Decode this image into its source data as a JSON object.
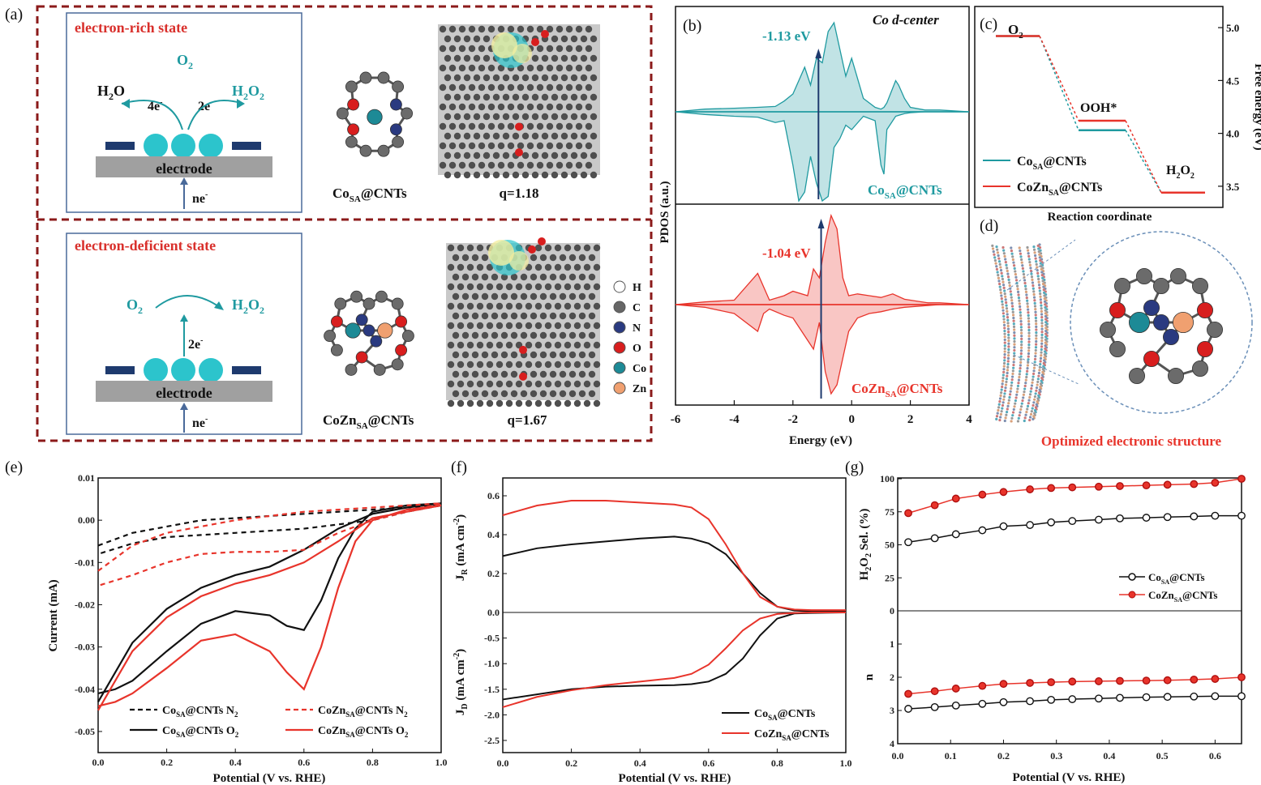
{
  "panels": {
    "a": {
      "label": "(a)",
      "top_state": "electron-rich state",
      "bottom_state": "electron-deficient state",
      "o2": "O",
      "o2_sub": "2",
      "h2o": "H",
      "h2o_sub": "2",
      "h2o_end": "O",
      "h2o2": "H",
      "h2o2_sub1": "2",
      "h2o2_mid": "O",
      "h2o2_sub2": "2",
      "four_e": "4e",
      "four_e_sup": "-",
      "two_e": "2e",
      "two_e_sup": "-",
      "electrode": "electrode",
      "ne": "ne",
      "ne_sup": "-",
      "co_name": "Co",
      "co_sub": "SA",
      "co_suffix": "@CNTs",
      "q_top": "q=1.18",
      "coz_name": "CoZn",
      "coz_sub": "SA",
      "coz_suffix": "@CNTs",
      "q_bottom": "q=1.67",
      "legend": [
        "H",
        "C",
        "N",
        "O",
        "Co",
        "Zn"
      ],
      "legend_colors": [
        "#ffffff",
        "#666666",
        "#2a3a80",
        "#d81e1e",
        "#1d8a96",
        "#f0a070"
      ]
    },
    "b": {
      "label": "(b)",
      "title": "Co d-center",
      "title_prefix": "Co ",
      "title_italic": "d",
      "title_suffix": "-center",
      "top_value": "-1.13 eV",
      "bottom_value": "-1.04 eV",
      "top_series": "Co",
      "top_series_sub": "SA",
      "top_series_suffix": "@CNTs",
      "bottom_series": "CoZn",
      "bottom_series_sub": "SA",
      "bottom_series_suffix": "@CNTs",
      "xlabel": "Energy (eV)",
      "ylabel": "PDOS (a.u.)",
      "xticks": [
        "-6",
        "-4",
        "-2",
        "0",
        "2",
        "4"
      ]
    },
    "c": {
      "label": "(c)",
      "o2": "O",
      "o2_sub": "2",
      "ooh": "OOH*",
      "h2o2": "H",
      "h2o2_sub1": "2",
      "h2o2_mid": "O",
      "h2o2_sub2": "2",
      "xlabel": "Reaction coordinate",
      "ylabel": "Free energy (eV)",
      "yticks": [
        "5.0",
        "4.5",
        "4.0",
        "3.5"
      ],
      "legend1": "Co",
      "legend1_sub": "SA",
      "legend1_suffix": "@CNTs",
      "legend2": "CoZn",
      "legend2_sub": "SA",
      "legend2_suffix": "@CNTs"
    },
    "d": {
      "label": "(d)",
      "caption": "Optimized electronic structure"
    },
    "e": {
      "label": "(e)",
      "xlabel": "Potential (V vs. RHE)",
      "ylabel": "Current (mA)",
      "xticks": [
        "0.0",
        "0.2",
        "0.4",
        "0.6",
        "0.8",
        "1.0"
      ],
      "yticks": [
        "0.01",
        "0.00",
        "-0.01",
        "-0.02",
        "-0.03",
        "-0.04",
        "-0.05"
      ],
      "legend": [
        {
          "base": "Co",
          "sub": "SA",
          "rest": "@CNTs N",
          "sub2": "2",
          "style": "dash",
          "color": "#111111"
        },
        {
          "base": "Co",
          "sub": "SA",
          "rest": "@CNTs O",
          "sub2": "2",
          "style": "solid",
          "color": "#111111"
        },
        {
          "base": "CoZn",
          "sub": "SA",
          "rest": "@CNTs N",
          "sub2": "2",
          "style": "dash",
          "color": "#e8342b"
        },
        {
          "base": "CoZn",
          "sub": "SA",
          "rest": "@CNTs O",
          "sub2": "2",
          "style": "solid",
          "color": "#e8342b"
        }
      ]
    },
    "f": {
      "label": "(f)",
      "xlabel": "Potential (V vs. RHE)",
      "ylabel_top": "J",
      "ylabel_top_sub": "R",
      "ylabel_top_rest": " (mA cm",
      "ylabel_top_sup": "-2",
      "ylabel_top_end": ")",
      "ylabel_bottom": "J",
      "ylabel_bottom_sub": "D",
      "ylabel_bottom_rest": " (mA cm",
      "ylabel_bottom_sup": "-2",
      "ylabel_bottom_end": ")",
      "xticks": [
        "0.0",
        "0.2",
        "0.4",
        "0.6",
        "0.8",
        "1.0"
      ],
      "yticks": [
        "0.6",
        "0.4",
        "0.2",
        "0.0",
        "-0.5",
        "-1.0",
        "-1.5",
        "-2.0",
        "-2.5"
      ],
      "legend1": "Co",
      "legend1_sub": "SA",
      "legend1_suffix": "@CNTs",
      "legend2": "CoZn",
      "legend2_sub": "SA",
      "legend2_suffix": "@CNTs"
    },
    "g": {
      "label": "(g)",
      "xlabel": "Potential (V vs. RHE)",
      "ylabel_top": "H",
      "ylabel_top_sub1": "2",
      "ylabel_top_mid": "O",
      "ylabel_top_sub2": "2",
      "ylabel_top_rest": " Sel. (%)",
      "ylabel_bottom": "n",
      "xticks": [
        "0.0",
        "0.1",
        "0.2",
        "0.3",
        "0.4",
        "0.5",
        "0.6"
      ],
      "yticks_top": [
        "100",
        "75",
        "50",
        "25",
        "0"
      ],
      "yticks_bottom": [
        "1",
        "2",
        "3",
        "4"
      ],
      "legend1": "Co",
      "legend1_sub": "SA",
      "legend1_suffix": "@CNTs",
      "legend2": "CoZn",
      "legend2_sub": "SA",
      "legend2_suffix": "@CNTs"
    }
  },
  "colors": {
    "teal": "#1f9aa0",
    "red": "#e8342b",
    "dashed_border": "#8b1a1a",
    "box_border": "#4a6a9a"
  },
  "chart_data": [
    {
      "type": "line",
      "panel": "b-top",
      "x": [
        -6,
        -5,
        -4,
        -3.2,
        -2.6,
        -2.3,
        -2.0,
        -1.8,
        -1.6,
        -1.4,
        -1.2,
        -1.0,
        -0.8,
        -0.6,
        -0.4,
        -0.2,
        0,
        0.4,
        0.8,
        1.0,
        1.1,
        1.2,
        1.5,
        1.6,
        1.8,
        2.0,
        2.5,
        3,
        4
      ],
      "series": [
        {
          "name": "Co_SA@CNTs (spin up)",
          "values": [
            0.0,
            0.03,
            0.04,
            0.05,
            0.06,
            0.12,
            0.2,
            0.35,
            0.5,
            0.3,
            0.6,
            0.55,
            0.9,
            1.0,
            0.7,
            0.4,
            0.6,
            0.15,
            0.05,
            0.03,
            0.05,
            0.1,
            0.35,
            0.3,
            0.15,
            0.05,
            0.02,
            0.02,
            0.0
          ]
        },
        {
          "name": "Co_SA@CNTs (spin down)",
          "values": [
            0.0,
            -0.03,
            -0.05,
            -0.06,
            -0.12,
            -0.1,
            -0.6,
            -1.0,
            -0.9,
            -0.5,
            -0.8,
            -1.0,
            -0.95,
            -0.4,
            -0.3,
            -0.15,
            -0.2,
            -0.05,
            -0.1,
            -0.6,
            -0.7,
            -0.2,
            -0.05,
            -0.04,
            -0.02,
            -0.01,
            0.0,
            0.0,
            0.0
          ]
        }
      ],
      "annotation": "-1.13 eV",
      "d_center": -1.13,
      "xlim": [
        -6,
        4
      ]
    },
    {
      "type": "line",
      "panel": "b-bottom",
      "x": [
        -6,
        -5,
        -4,
        -3.2,
        -3.0,
        -2.8,
        -2.3,
        -2.0,
        -1.5,
        -1.3,
        -1.1,
        -0.9,
        -0.7,
        -0.5,
        -0.3,
        -0.1,
        0.2,
        0.6,
        1.0,
        1.4,
        1.8,
        2.2,
        2.6,
        3,
        4
      ],
      "series": [
        {
          "name": "CoZn_SA@CNTs (spin up)",
          "values": [
            0.0,
            0.03,
            0.05,
            0.35,
            0.2,
            0.05,
            0.1,
            0.15,
            0.1,
            0.4,
            0.3,
            0.7,
            1.0,
            0.85,
            0.3,
            0.1,
            0.12,
            0.1,
            0.08,
            0.12,
            0.06,
            0.04,
            0.02,
            0.02,
            0.0
          ]
        },
        {
          "name": "CoZn_SA@CNTs (spin down)",
          "values": [
            0.0,
            -0.03,
            -0.1,
            -0.3,
            -0.1,
            -0.05,
            -0.12,
            -0.15,
            -0.4,
            -0.5,
            -0.2,
            -0.75,
            -1.0,
            -0.9,
            -0.6,
            -0.3,
            -0.15,
            -0.1,
            -0.08,
            -0.05,
            -0.03,
            -0.02,
            -0.01,
            0.0,
            0.0
          ]
        }
      ],
      "annotation": "-1.04 eV",
      "d_center": -1.04,
      "xlim": [
        -6,
        4
      ]
    },
    {
      "type": "line",
      "panel": "c",
      "categories": [
        "O2",
        "OOH*",
        "H2O2"
      ],
      "series": [
        {
          "name": "Co_SA@CNTs",
          "values": [
            4.92,
            4.03,
            3.44
          ]
        },
        {
          "name": "CoZn_SA@CNTs",
          "values": [
            4.92,
            4.12,
            3.44
          ]
        }
      ],
      "ylim": [
        3.3,
        5.2
      ],
      "xlabel": "Reaction coordinate",
      "ylabel": "Free energy (eV)"
    },
    {
      "type": "line",
      "panel": "e",
      "xlabel": "Potential (V vs. RHE)",
      "ylabel": "Current (mA)",
      "xlim": [
        0.0,
        1.0
      ],
      "ylim": [
        -0.055,
        0.01
      ],
      "series": [
        {
          "name": "Co_SA@CNTs N2",
          "x": [
            0.0,
            0.1,
            0.2,
            0.3,
            0.4,
            0.5,
            0.6,
            0.7,
            0.8,
            0.9,
            1.0,
            0.9,
            0.8,
            0.7,
            0.6,
            0.5,
            0.4,
            0.3,
            0.2,
            0.1,
            0.0
          ],
          "values": [
            -0.006,
            -0.003,
            -0.0015,
            0.0,
            0.0005,
            0.001,
            0.0015,
            0.002,
            0.0025,
            0.003,
            0.0035,
            0.002,
            0.0,
            -0.001,
            -0.002,
            -0.0025,
            -0.003,
            -0.0035,
            -0.004,
            -0.0055,
            -0.008
          ]
        },
        {
          "name": "Co_SA@CNTs O2",
          "x": [
            0.0,
            0.05,
            0.1,
            0.2,
            0.3,
            0.4,
            0.5,
            0.55,
            0.6,
            0.65,
            0.7,
            0.75,
            0.8,
            0.9,
            1.0,
            0.9,
            0.8,
            0.7,
            0.6,
            0.5,
            0.4,
            0.3,
            0.2,
            0.1,
            0.0
          ],
          "values": [
            -0.041,
            -0.04,
            -0.038,
            -0.031,
            -0.0245,
            -0.0215,
            -0.0225,
            -0.025,
            -0.026,
            -0.019,
            -0.009,
            -0.002,
            0.002,
            0.0035,
            0.004,
            0.003,
            0.0015,
            -0.002,
            -0.007,
            -0.011,
            -0.013,
            -0.016,
            -0.021,
            -0.029,
            -0.043
          ]
        },
        {
          "name": "CoZn_SA@CNTs N2",
          "x": [
            0.0,
            0.1,
            0.2,
            0.3,
            0.4,
            0.5,
            0.6,
            0.7,
            0.8,
            0.9,
            1.0,
            0.9,
            0.8,
            0.7,
            0.6,
            0.5,
            0.4,
            0.3,
            0.2,
            0.1,
            0.0
          ],
          "values": [
            -0.012,
            -0.006,
            -0.003,
            -0.0015,
            0.0,
            0.001,
            0.002,
            0.0025,
            0.003,
            0.0035,
            0.004,
            0.002,
            0.0,
            -0.003,
            -0.007,
            -0.0075,
            -0.0075,
            -0.008,
            -0.01,
            -0.013,
            -0.0155
          ]
        },
        {
          "name": "CoZn_SA@CNTs O2",
          "x": [
            0.0,
            0.05,
            0.1,
            0.2,
            0.3,
            0.4,
            0.5,
            0.55,
            0.6,
            0.65,
            0.7,
            0.75,
            0.8,
            0.9,
            1.0,
            0.9,
            0.8,
            0.7,
            0.6,
            0.5,
            0.4,
            0.3,
            0.2,
            0.1,
            0.0
          ],
          "values": [
            -0.044,
            -0.043,
            -0.041,
            -0.035,
            -0.0285,
            -0.027,
            -0.031,
            -0.036,
            -0.04,
            -0.03,
            -0.016,
            -0.005,
            0.0,
            0.0025,
            0.0035,
            0.002,
            0.0005,
            -0.005,
            -0.01,
            -0.013,
            -0.015,
            -0.018,
            -0.023,
            -0.031,
            -0.045
          ]
        }
      ],
      "legend_position": "bottom"
    },
    {
      "type": "line",
      "panel": "f-top",
      "xlabel": "Potential (V vs. RHE)",
      "ylabel": "J_R (mA cm-2)",
      "xlim": [
        0.0,
        1.0
      ],
      "ylim": [
        0.0,
        0.65
      ],
      "x": [
        0.0,
        0.1,
        0.2,
        0.3,
        0.4,
        0.5,
        0.55,
        0.6,
        0.65,
        0.7,
        0.75,
        0.8,
        0.85,
        0.9,
        1.0
      ],
      "series": [
        {
          "name": "Co_SA@CNTs",
          "values": [
            0.29,
            0.33,
            0.35,
            0.365,
            0.38,
            0.39,
            0.38,
            0.355,
            0.3,
            0.2,
            0.1,
            0.03,
            0.01,
            0.005,
            0.005
          ]
        },
        {
          "name": "CoZn_SA@CNTs",
          "values": [
            0.5,
            0.55,
            0.575,
            0.575,
            0.565,
            0.555,
            0.54,
            0.48,
            0.35,
            0.2,
            0.08,
            0.03,
            0.015,
            0.012,
            0.012
          ]
        }
      ]
    },
    {
      "type": "line",
      "panel": "f-bottom",
      "xlabel": "Potential (V vs. RHE)",
      "ylabel": "J_D (mA cm-2)",
      "xlim": [
        0.0,
        1.0
      ],
      "ylim": [
        -2.5,
        0.0
      ],
      "x": [
        0.0,
        0.1,
        0.2,
        0.3,
        0.4,
        0.5,
        0.55,
        0.6,
        0.65,
        0.7,
        0.75,
        0.8,
        0.85,
        0.9,
        1.0
      ],
      "series": [
        {
          "name": "Co_SA@CNTs",
          "values": [
            -1.7,
            -1.6,
            -1.5,
            -1.45,
            -1.43,
            -1.42,
            -1.4,
            -1.35,
            -1.2,
            -0.9,
            -0.45,
            -0.12,
            -0.02,
            -0.01,
            0.0
          ]
        },
        {
          "name": "CoZn_SA@CNTs",
          "values": [
            -1.85,
            -1.65,
            -1.52,
            -1.42,
            -1.35,
            -1.28,
            -1.2,
            -1.02,
            -0.7,
            -0.35,
            -0.12,
            -0.03,
            -0.01,
            0.0,
            0.0
          ]
        }
      ]
    },
    {
      "type": "scatter",
      "panel": "g-top",
      "xlabel": "Potential (V vs. RHE)",
      "ylabel": "H2O2 Sel. (%)",
      "xlim": [
        0.0,
        0.65
      ],
      "ylim": [
        0,
        100
      ],
      "x": [
        0.02,
        0.07,
        0.11,
        0.16,
        0.2,
        0.25,
        0.29,
        0.33,
        0.38,
        0.42,
        0.47,
        0.51,
        0.56,
        0.6,
        0.65
      ],
      "series": [
        {
          "name": "Co_SA@CNTs",
          "values": [
            52,
            55,
            58,
            61,
            64,
            65,
            67,
            68,
            69,
            70,
            70.5,
            71,
            71.5,
            72,
            72
          ]
        },
        {
          "name": "CoZn_SA@CNTs",
          "values": [
            74,
            80,
            85,
            88,
            90,
            92,
            93,
            93.5,
            94,
            94.5,
            95,
            95.5,
            96,
            97,
            100
          ]
        }
      ]
    },
    {
      "type": "scatter",
      "panel": "g-bottom",
      "xlabel": "Potential (V vs. RHE)",
      "ylabel": "n",
      "xlim": [
        0.0,
        0.65
      ],
      "ylim": [
        4,
        0
      ],
      "x": [
        0.02,
        0.07,
        0.11,
        0.16,
        0.2,
        0.25,
        0.29,
        0.33,
        0.38,
        0.42,
        0.47,
        0.51,
        0.56,
        0.6,
        0.65
      ],
      "series": [
        {
          "name": "Co_SA@CNTs",
          "values": [
            2.95,
            2.9,
            2.85,
            2.8,
            2.75,
            2.72,
            2.68,
            2.66,
            2.64,
            2.62,
            2.6,
            2.59,
            2.58,
            2.57,
            2.57
          ]
        },
        {
          "name": "CoZn_SA@CNTs",
          "values": [
            2.5,
            2.42,
            2.34,
            2.26,
            2.2,
            2.17,
            2.15,
            2.13,
            2.12,
            2.11,
            2.1,
            2.09,
            2.07,
            2.05,
            2.0
          ]
        }
      ]
    }
  ]
}
